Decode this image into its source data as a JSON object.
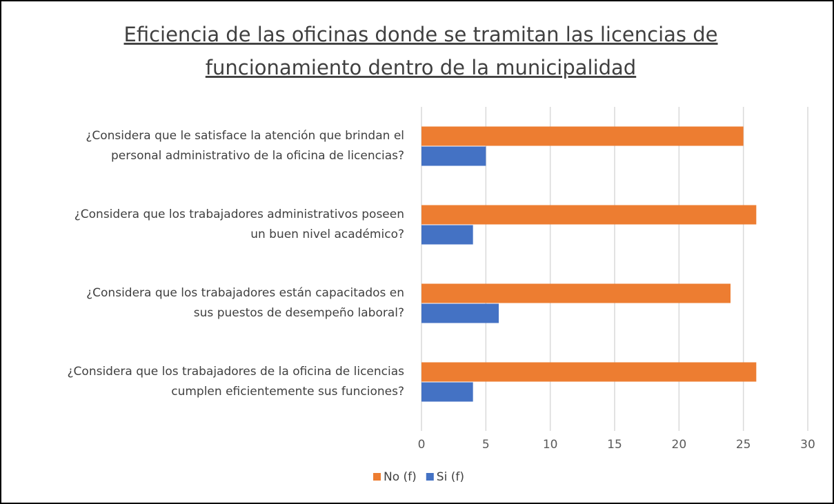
{
  "chart_data": {
    "type": "barh",
    "title": [
      "Eficiencia de las oficinas donde se tramitan las licencias de",
      "funcionamiento dentro de la municipalidad"
    ],
    "categories": [
      [
        "¿Considera que le satisface la atención que brindan el",
        "personal administrativo de la oficina de licencias?"
      ],
      [
        "¿Considera que los trabajadores administrativos poseen",
        "un buen nivel académico?"
      ],
      [
        "¿Considera que los trabajadores están capacitados en",
        "sus puestos de desempeño laboral?"
      ],
      [
        "¿Considera que los trabajadores de la oficina de licencias",
        "cumplen eficientemente sus funciones?"
      ]
    ],
    "series": [
      {
        "name": "No (f)",
        "color": "#ed7d31",
        "values": [
          25,
          26,
          24,
          26
        ]
      },
      {
        "name": "Si (f)",
        "color": "#4472c4",
        "values": [
          5,
          4,
          6,
          4
        ]
      }
    ],
    "xlim": [
      0,
      30
    ],
    "xticks": [
      0,
      5,
      10,
      15,
      20,
      25,
      30
    ],
    "grid": true,
    "legend": "bottom"
  }
}
